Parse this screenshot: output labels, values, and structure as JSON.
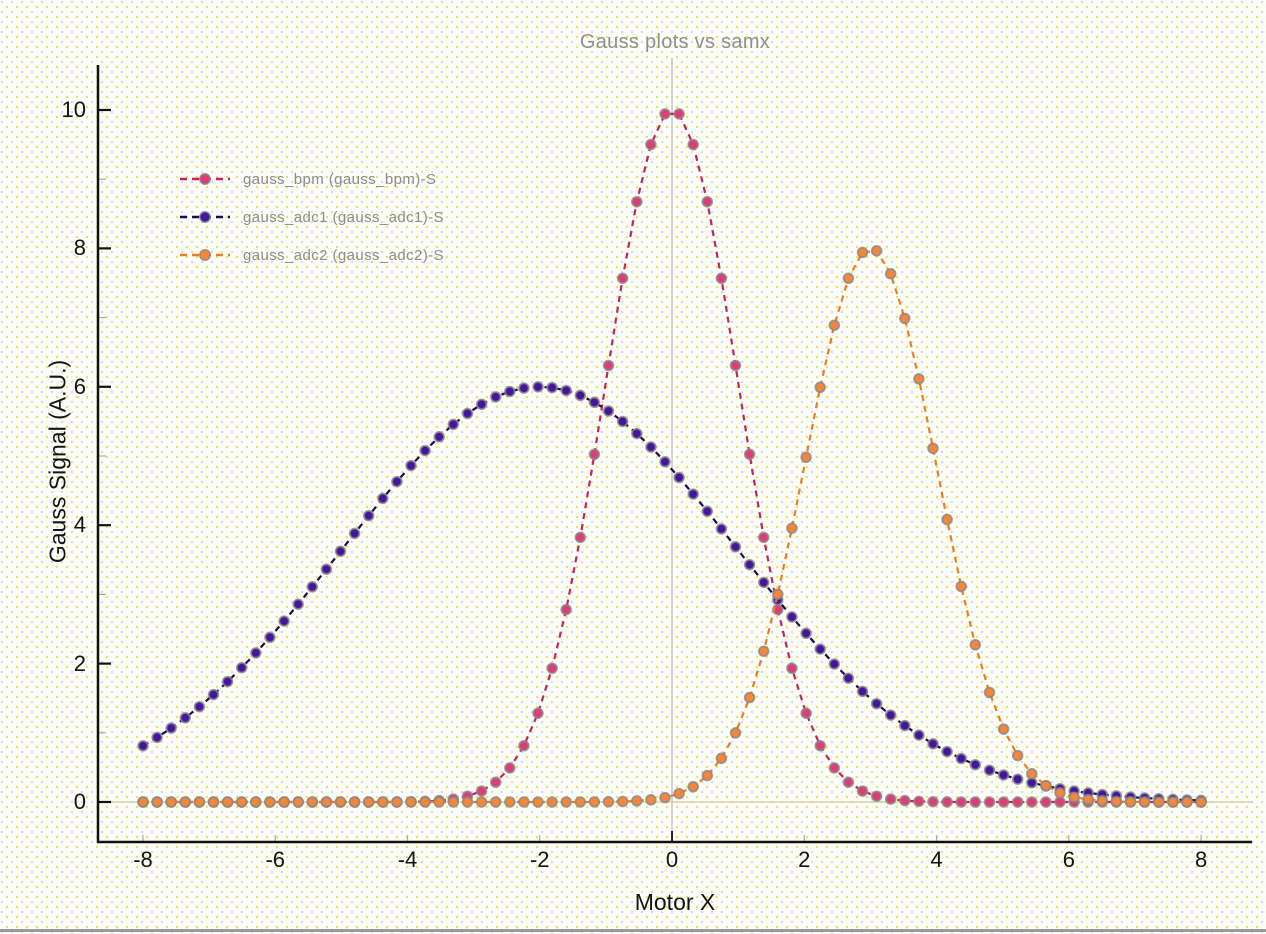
{
  "window": {
    "background_base": "#FDFDF7",
    "dot_color_yellow": "#E6E262",
    "dot_color_lavender": "#D4D4F0",
    "bottom_border_color": "#9A9A9A"
  },
  "chart_data": {
    "type": "line",
    "title": "Gauss plots vs samx",
    "xlabel": "Motor X",
    "ylabel": "Gauss Signal (A.U.)",
    "x_ticks": [
      -8,
      -6,
      -4,
      -2,
      0,
      2,
      4,
      6,
      8
    ],
    "y_ticks": [
      0,
      2,
      4,
      6,
      8,
      10
    ],
    "y_minor_ticks": [
      1,
      3,
      5,
      7,
      9
    ],
    "xlim": [
      -8.68,
      8.77
    ],
    "ylim": [
      -0.578,
      10.65
    ],
    "grid": "zero-lines-only",
    "legend_position": "inside-top-left",
    "sampling": {
      "x_start": -8,
      "x_stop": 8,
      "n_points": 76
    },
    "series": [
      {
        "name": "gauss_bpm (gauss_bpm)-S",
        "model": "gaussian",
        "amplitude": 10,
        "center": 0,
        "sigma": 1,
        "peak_value": 10,
        "peak_x": 0,
        "marker_color": "#DE3D77",
        "line_color": "#C22460"
      },
      {
        "name": "gauss_adc1 (gauss_adc1)-S",
        "model": "gaussian",
        "amplitude": 6,
        "center": -2,
        "sigma": 3,
        "peak_value": 6,
        "peak_x": -2,
        "marker_color": "#44169E",
        "line_color": "#1D0A55"
      },
      {
        "name": "gauss_adc2 (gauss_adc2)-S",
        "model": "gaussian",
        "amplitude": 8,
        "center": 3,
        "sigma": 1,
        "peak_value": 8,
        "peak_x": 3,
        "marker_color": "#F6873A",
        "line_color": "#ED7D1F"
      }
    ],
    "style": {
      "axis_color": "#111111",
      "major_tick_color": "#111111",
      "minor_tick_color": "#AAAAAA",
      "x_tick_color": "#AAAAAA",
      "zero_h_line_color": "#CCCC99",
      "zero_v_line_color": "#C8C8C8",
      "marker_outline_color": "rgba(135,135,135,0.8)",
      "dash_pattern": "6 5"
    }
  },
  "legend": {
    "items": [
      {
        "label": "gauss_bpm (gauss_bpm)-S"
      },
      {
        "label": "gauss_adc1 (gauss_adc1)-S"
      },
      {
        "label": "gauss_adc2 (gauss_adc2)-S"
      }
    ]
  }
}
